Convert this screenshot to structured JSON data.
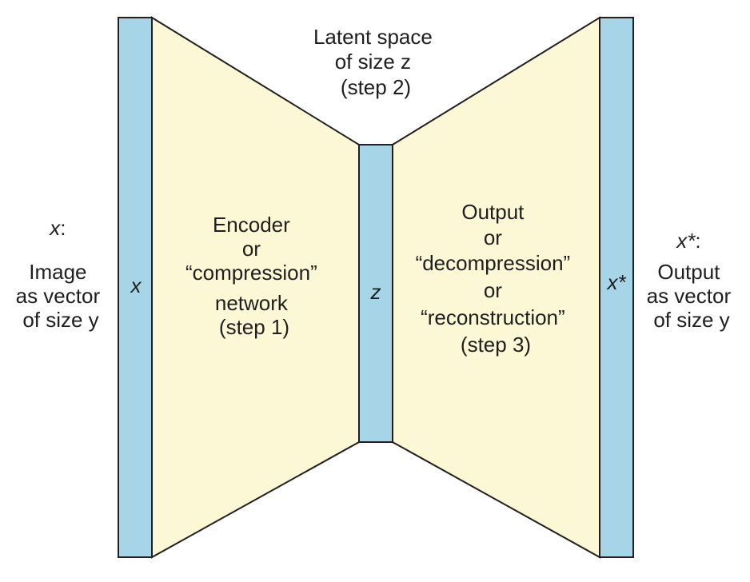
{
  "diagram": {
    "colors": {
      "trapezoid_fill": "#fcf8d6",
      "vector_fill": "#a6d5e8",
      "stroke": "#231f20",
      "text": "#1e1e1e"
    },
    "input": {
      "bar_label": "x",
      "caption": {
        "var": "x",
        "suffix": ":",
        "lines": [
          "Image",
          "as vector",
          "of size y"
        ]
      }
    },
    "encoder": {
      "lines": [
        "Encoder",
        "or",
        "“compression”",
        "network",
        "(step 1)"
      ]
    },
    "latent": {
      "bar_label": "z",
      "caption": [
        "Latent space",
        "of size z",
        "(step 2)"
      ]
    },
    "decoder": {
      "lines": [
        "Output",
        "or",
        "“decompression”",
        "or",
        "“reconstruction”",
        "(step 3)"
      ]
    },
    "output": {
      "bar_label": "x*",
      "caption": {
        "var": "x*",
        "suffix": ":",
        "lines": [
          "Output",
          "as vector",
          "of size y"
        ]
      }
    }
  }
}
